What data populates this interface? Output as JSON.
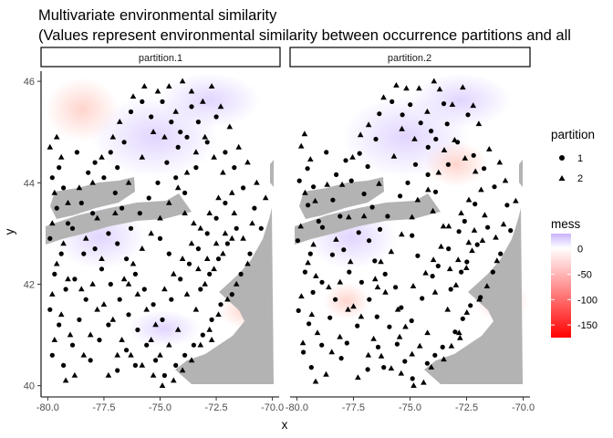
{
  "chart_data": {
    "type": "scatter",
    "title": "Multivariate environmental similarity",
    "subtitle": "(Values represent environmental similarity between occurrence partitions and all",
    "xlabel": "x",
    "ylabel": "y",
    "xlim": [
      -80.3,
      -69.7
    ],
    "ylim": [
      39.85,
      46.2
    ],
    "x_ticks": [
      -80.0,
      -77.5,
      -75.0,
      -72.5,
      -70.0
    ],
    "x_tick_labels": [
      "-80.0",
      "-77.5",
      "-75.0",
      "-72.5",
      "-70.0"
    ],
    "y_ticks": [
      40,
      42,
      44,
      46
    ],
    "y_tick_labels": [
      "40",
      "42",
      "44",
      "46"
    ],
    "facets": [
      "partition.1",
      "partition.2"
    ],
    "grid": false,
    "legend_position": "right",
    "legends": {
      "shape": {
        "title": "partition",
        "items": [
          "1",
          "2"
        ]
      },
      "fill": {
        "title": "mess",
        "breaks": [
          0,
          -50,
          -100,
          -150
        ],
        "labels": [
          "0",
          "-50",
          "-100",
          "-150"
        ],
        "range": [
          -175,
          30
        ],
        "colors": [
          "#ff0000",
          "#ffffff",
          "#c9b3ff"
        ]
      }
    },
    "series": [
      {
        "name": "1",
        "shape": "circle",
        "points": [
          [
            -79.8,
            44.1
          ],
          [
            -79.5,
            44.3
          ],
          [
            -79.3,
            43.9
          ],
          [
            -79.6,
            43.5
          ],
          [
            -79.9,
            42.9
          ],
          [
            -79.4,
            42.6
          ],
          [
            -79.7,
            42.2
          ],
          [
            -79.2,
            41.9
          ],
          [
            -79.9,
            41.5
          ],
          [
            -79.5,
            41.2
          ],
          [
            -79.8,
            40.6
          ],
          [
            -79.3,
            40.4
          ],
          [
            -78.9,
            40.8
          ],
          [
            -78.6,
            41.3
          ],
          [
            -78.8,
            42.1
          ],
          [
            -78.4,
            42.6
          ],
          [
            -78.9,
            43.1
          ],
          [
            -78.5,
            43.6
          ],
          [
            -78.2,
            44.2
          ],
          [
            -78.7,
            44.6
          ],
          [
            -77.9,
            44.4
          ],
          [
            -77.5,
            44.1
          ],
          [
            -77.2,
            44.6
          ],
          [
            -76.9,
            44.3
          ],
          [
            -76.6,
            44.8
          ],
          [
            -76.3,
            45.4
          ],
          [
            -75.8,
            45.6
          ],
          [
            -75.4,
            45.3
          ],
          [
            -74.9,
            45.6
          ],
          [
            -74.5,
            45.2
          ],
          [
            -74.1,
            45.0
          ],
          [
            -73.6,
            45.5
          ],
          [
            -73.3,
            45.2
          ],
          [
            -72.9,
            44.8
          ],
          [
            -72.5,
            45.3
          ],
          [
            -72.1,
            44.6
          ],
          [
            -71.7,
            44.3
          ],
          [
            -71.3,
            43.9
          ],
          [
            -70.8,
            43.5
          ],
          [
            -70.5,
            43.1
          ],
          [
            -71.0,
            42.6
          ],
          [
            -71.4,
            42.2
          ],
          [
            -71.8,
            41.8
          ],
          [
            -72.3,
            41.6
          ],
          [
            -72.7,
            41.3
          ],
          [
            -73.1,
            41.0
          ],
          [
            -73.5,
            40.8
          ],
          [
            -73.9,
            40.6
          ],
          [
            -74.3,
            40.4
          ],
          [
            -74.8,
            40.2
          ],
          [
            -75.2,
            40.5
          ],
          [
            -75.6,
            40.8
          ],
          [
            -76.0,
            41.1
          ],
          [
            -76.4,
            41.4
          ],
          [
            -76.8,
            41.7
          ],
          [
            -77.2,
            42.0
          ],
          [
            -77.6,
            42.3
          ],
          [
            -77.9,
            42.7
          ],
          [
            -77.3,
            43.0
          ],
          [
            -76.9,
            42.8
          ],
          [
            -76.5,
            42.5
          ],
          [
            -76.1,
            42.2
          ],
          [
            -75.7,
            41.9
          ],
          [
            -75.3,
            41.6
          ],
          [
            -74.9,
            41.3
          ],
          [
            -74.5,
            41.7
          ],
          [
            -74.1,
            42.1
          ],
          [
            -73.7,
            42.4
          ],
          [
            -73.3,
            42.7
          ],
          [
            -72.9,
            43.0
          ],
          [
            -72.5,
            43.3
          ],
          [
            -72.1,
            43.6
          ],
          [
            -73.9,
            43.8
          ],
          [
            -74.3,
            44.1
          ],
          [
            -74.7,
            44.4
          ],
          [
            -75.1,
            44.0
          ],
          [
            -75.5,
            43.7
          ],
          [
            -75.9,
            43.4
          ],
          [
            -76.3,
            43.1
          ],
          [
            -76.7,
            43.5
          ],
          [
            -75.0,
            42.9
          ],
          [
            -74.6,
            42.6
          ],
          [
            -73.2,
            41.9
          ],
          [
            -72.8,
            42.2
          ],
          [
            -72.4,
            42.5
          ],
          [
            -72.0,
            42.8
          ],
          [
            -71.6,
            43.1
          ],
          [
            -73.4,
            44.3
          ],
          [
            -73.8,
            44.9
          ],
          [
            -74.2,
            44.7
          ],
          [
            -78.1,
            40.5
          ],
          [
            -77.7,
            40.9
          ],
          [
            -77.3,
            41.2
          ],
          [
            -76.9,
            40.3
          ],
          [
            -76.5,
            40.7
          ],
          [
            -76.1,
            40.4
          ],
          [
            -78.3,
            41.7
          ],
          [
            -79.1,
            43.2
          ],
          [
            -78.0,
            43.4
          ],
          [
            -77.0,
            43.8
          ]
        ]
      },
      {
        "name": "2",
        "shape": "triangle",
        "points": [
          [
            -79.9,
            44.7
          ],
          [
            -79.6,
            44.9
          ],
          [
            -79.4,
            44.5
          ],
          [
            -79.7,
            43.8
          ],
          [
            -79.1,
            43.6
          ],
          [
            -79.8,
            43.2
          ],
          [
            -79.3,
            42.8
          ],
          [
            -79.6,
            42.4
          ],
          [
            -79.1,
            42.1
          ],
          [
            -79.8,
            41.8
          ],
          [
            -79.4,
            41.4
          ],
          [
            -79.0,
            41.0
          ],
          [
            -79.7,
            40.9
          ],
          [
            -79.2,
            40.1
          ],
          [
            -78.8,
            40.2
          ],
          [
            -78.4,
            40.6
          ],
          [
            -78.1,
            41.0
          ],
          [
            -77.8,
            41.5
          ],
          [
            -78.0,
            42.0
          ],
          [
            -77.6,
            42.5
          ],
          [
            -78.3,
            42.9
          ],
          [
            -77.8,
            43.3
          ],
          [
            -78.6,
            43.9
          ],
          [
            -78.0,
            44.0
          ],
          [
            -77.6,
            44.5
          ],
          [
            -77.1,
            44.9
          ],
          [
            -76.8,
            45.2
          ],
          [
            -76.2,
            45.7
          ],
          [
            -75.7,
            45.9
          ],
          [
            -75.1,
            45.8
          ],
          [
            -74.6,
            45.9
          ],
          [
            -74.0,
            46.0
          ],
          [
            -73.6,
            45.8
          ],
          [
            -73.1,
            45.6
          ],
          [
            -72.7,
            45.9
          ],
          [
            -72.3,
            45.5
          ],
          [
            -71.9,
            45.1
          ],
          [
            -71.5,
            44.7
          ],
          [
            -71.1,
            44.4
          ],
          [
            -70.7,
            44.0
          ],
          [
            -70.3,
            43.7
          ],
          [
            -70.9,
            43.2
          ],
          [
            -71.3,
            42.9
          ],
          [
            -71.1,
            42.4
          ],
          [
            -71.6,
            42.0
          ],
          [
            -72.0,
            41.7
          ],
          [
            -72.4,
            41.4
          ],
          [
            -72.8,
            41.1
          ],
          [
            -73.2,
            40.8
          ],
          [
            -73.6,
            40.5
          ],
          [
            -74.0,
            40.3
          ],
          [
            -74.4,
            40.1
          ],
          [
            -74.9,
            40.0
          ],
          [
            -75.3,
            40.2
          ],
          [
            -75.8,
            40.4
          ],
          [
            -76.3,
            40.6
          ],
          [
            -76.7,
            40.9
          ],
          [
            -77.1,
            41.3
          ],
          [
            -77.5,
            41.6
          ],
          [
            -76.6,
            42.1
          ],
          [
            -76.2,
            42.4
          ],
          [
            -75.8,
            42.7
          ],
          [
            -75.4,
            43.0
          ],
          [
            -75.0,
            43.3
          ],
          [
            -74.6,
            43.6
          ],
          [
            -74.2,
            43.9
          ],
          [
            -73.8,
            44.2
          ],
          [
            -73.4,
            44.6
          ],
          [
            -73.0,
            44.9
          ],
          [
            -72.6,
            44.5
          ],
          [
            -72.2,
            44.2
          ],
          [
            -71.8,
            43.8
          ],
          [
            -72.4,
            43.7
          ],
          [
            -72.8,
            43.4
          ],
          [
            -73.2,
            43.1
          ],
          [
            -73.6,
            42.8
          ],
          [
            -74.0,
            42.5
          ],
          [
            -74.4,
            42.2
          ],
          [
            -74.8,
            41.9
          ],
          [
            -75.2,
            41.2
          ],
          [
            -75.6,
            41.5
          ],
          [
            -76.0,
            41.8
          ],
          [
            -76.4,
            42.0
          ],
          [
            -73.0,
            42.0
          ],
          [
            -72.6,
            42.3
          ],
          [
            -72.2,
            42.6
          ],
          [
            -71.8,
            42.9
          ],
          [
            -73.4,
            41.5
          ],
          [
            -73.8,
            41.8
          ],
          [
            -74.2,
            41.1
          ],
          [
            -74.6,
            40.8
          ],
          [
            -75.0,
            40.6
          ],
          [
            -75.4,
            40.9
          ],
          [
            -77.3,
            40.2
          ],
          [
            -76.9,
            40.6
          ],
          [
            -78.5,
            41.9
          ],
          [
            -77.0,
            43.4
          ],
          [
            -76.4,
            44.0
          ],
          [
            -75.8,
            44.5
          ],
          [
            -75.3,
            45.0
          ],
          [
            -74.8,
            44.9
          ],
          [
            -74.3,
            45.4
          ],
          [
            -73.9,
            43.4
          ],
          [
            -73.5,
            43.2
          ],
          [
            -72.9,
            42.5
          ],
          [
            -72.5,
            42.8
          ],
          [
            -72.1,
            43.0
          ],
          [
            -71.7,
            43.4
          ],
          [
            -73.3,
            42.3
          ],
          [
            -72.7,
            40.9
          ]
        ]
      }
    ]
  },
  "colors": {
    "land": "#b3b3b3",
    "strip_border": "#000000",
    "axis_line": "#000000",
    "point": "#000000",
    "mess_high": "#c9b3ff",
    "mess_zero": "#ffffff",
    "mess_low": "#ff0000"
  }
}
